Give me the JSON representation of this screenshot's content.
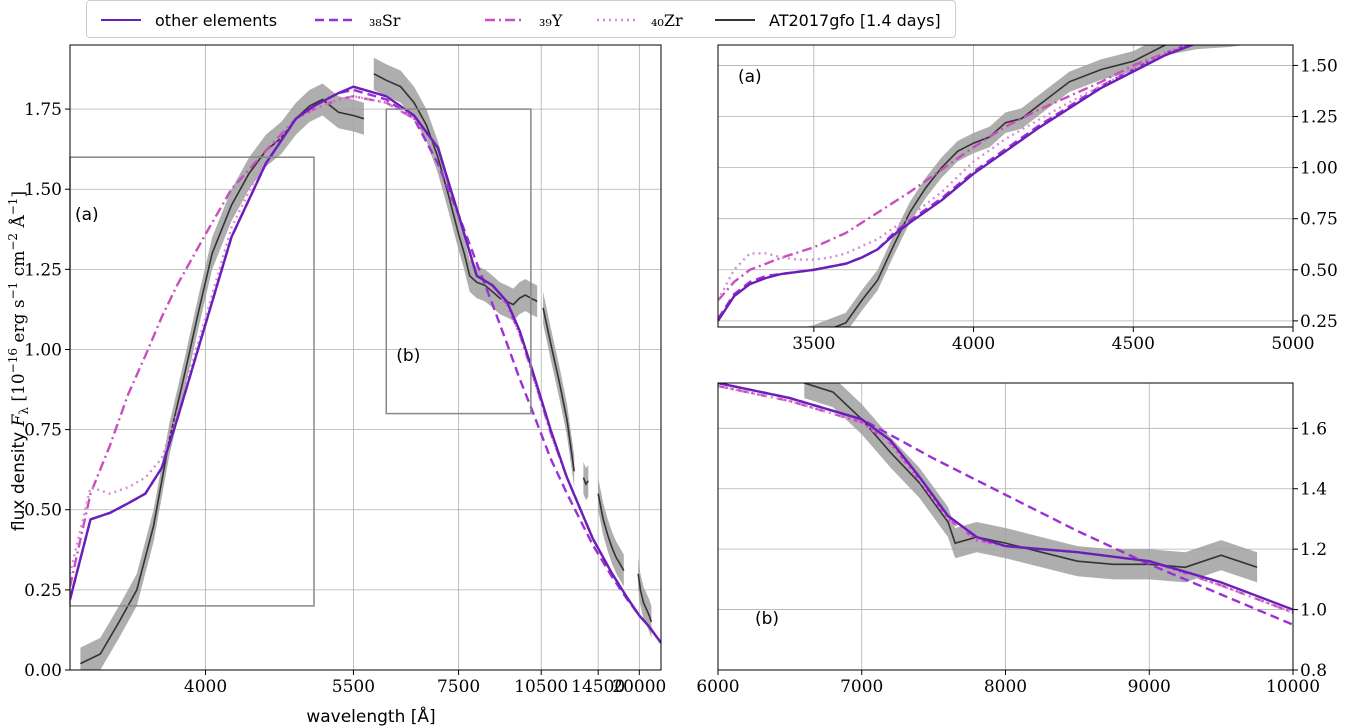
{
  "legend": {
    "other": "other elements",
    "sr": "₃₈Sr",
    "y": "₃₉Y",
    "zr": "₄₀Zr",
    "obs": "AT2017gfo [1.4 days]"
  },
  "colors": {
    "other": "#6a1fb8",
    "sr": "#9b30d6",
    "y": "#c94ec0",
    "zr": "#d88bd6",
    "obs": "#333333",
    "obs_band": "#a0a0a0",
    "grid": "#b0b0b0",
    "box": "#888888"
  },
  "chart_data": [
    {
      "id": "main",
      "type": "line",
      "xlabel": "wavelength [Å]",
      "ylabel": "flux density F_λ [10⁻¹⁶ erg s⁻¹ cm⁻² Å⁻¹]",
      "ylabel_parts": {
        "pre": "flux density ",
        "mid": " [10",
        "exp1": "−16",
        "mid2": " erg s",
        "exp2": "−1",
        "mid3": " cm",
        "exp3": "−2",
        "mid4": " Å",
        "exp4": "−1",
        "post": "]",
        "F": "F",
        "lambda": "λ"
      },
      "x_scale": "reciprocal",
      "xlim": [
        3200,
        25000
      ],
      "ylim": [
        0.0,
        1.95
      ],
      "xticks": [
        4000,
        5500,
        7500,
        10500,
        14500,
        20000
      ],
      "yticks": [
        0.0,
        0.25,
        0.5,
        0.75,
        1.0,
        1.25,
        1.5,
        1.75
      ],
      "xtick_labels": [
        "4000",
        "5500",
        "7500",
        "10500",
        "14500",
        "20000"
      ],
      "ytick_labels": [
        "0.00",
        "0.25",
        "0.50",
        "0.75",
        "1.00",
        "1.25",
        "1.50",
        "1.75"
      ],
      "grid": true,
      "zoom_boxes": [
        {
          "label": "(a)",
          "x0": 3200,
          "x1": 5000,
          "y0": 0.2,
          "y1": 1.6
        },
        {
          "label": "(b)",
          "x0": 6000,
          "x1": 10000,
          "y0": 0.8,
          "y1": 1.75
        }
      ],
      "series": [
        {
          "key": "sr",
          "dash": "9,5",
          "x": [
            3200,
            3300,
            3400,
            3500,
            3600,
            3700,
            3800,
            4000,
            4200,
            4500,
            4800,
            5000,
            5300,
            5500,
            6000,
            6500,
            7000,
            7500,
            8000,
            8500,
            9000,
            9500,
            10000,
            11000,
            12000,
            14000,
            16000,
            18000,
            20000,
            22000,
            25000
          ],
          "y": [
            0.22,
            0.47,
            0.49,
            0.52,
            0.55,
            0.63,
            0.78,
            1.08,
            1.35,
            1.58,
            1.72,
            1.76,
            1.8,
            1.81,
            1.78,
            1.72,
            1.58,
            1.42,
            1.27,
            1.14,
            1.02,
            0.91,
            0.82,
            0.66,
            0.55,
            0.39,
            0.29,
            0.22,
            0.17,
            0.135,
            0.085
          ]
        },
        {
          "key": "y",
          "dash": "10,4,2,4",
          "x": [
            3200,
            3300,
            3400,
            3500,
            3600,
            3700,
            3800,
            4000,
            4200,
            4500,
            4800,
            5000,
            5300,
            5500,
            6000,
            6500,
            7000,
            7500,
            8000,
            8500,
            9000,
            9500,
            10000,
            11000,
            12000,
            14000,
            16000,
            18000,
            20000,
            22000,
            25000
          ],
          "y": [
            0.26,
            0.55,
            0.7,
            0.86,
            0.98,
            1.1,
            1.2,
            1.36,
            1.5,
            1.62,
            1.72,
            1.75,
            1.78,
            1.79,
            1.77,
            1.72,
            1.63,
            1.42,
            1.23,
            1.2,
            1.14,
            1.05,
            0.94,
            0.74,
            0.6,
            0.41,
            0.3,
            0.225,
            0.17,
            0.135,
            0.085
          ]
        },
        {
          "key": "zr",
          "dash": "2,4",
          "x": [
            3200,
            3300,
            3400,
            3500,
            3600,
            3700,
            3800,
            4000,
            4200,
            4500,
            4800,
            5000,
            5300,
            5500,
            6000,
            6500,
            7000,
            7500,
            8000,
            8500,
            9000,
            9500,
            10000,
            11000,
            12000,
            14000,
            16000,
            18000,
            20000,
            22000,
            25000
          ],
          "y": [
            0.3,
            0.57,
            0.55,
            0.57,
            0.6,
            0.66,
            0.8,
            1.1,
            1.38,
            1.6,
            1.72,
            1.75,
            1.78,
            1.79,
            1.77,
            1.72,
            1.63,
            1.42,
            1.23,
            1.2,
            1.14,
            1.05,
            0.94,
            0.74,
            0.6,
            0.41,
            0.3,
            0.225,
            0.17,
            0.135,
            0.085
          ]
        },
        {
          "key": "other",
          "dash": "",
          "x": [
            3200,
            3300,
            3400,
            3500,
            3600,
            3700,
            3800,
            4000,
            4200,
            4500,
            4800,
            5000,
            5300,
            5500,
            6000,
            6500,
            7000,
            7500,
            8000,
            8500,
            9000,
            9500,
            10000,
            11000,
            12000,
            14000,
            16000,
            18000,
            20000,
            22000,
            25000
          ],
          "y": [
            0.22,
            0.47,
            0.49,
            0.52,
            0.55,
            0.63,
            0.78,
            1.08,
            1.35,
            1.58,
            1.72,
            1.76,
            1.8,
            1.82,
            1.79,
            1.73,
            1.63,
            1.42,
            1.23,
            1.2,
            1.15,
            1.06,
            0.95,
            0.75,
            0.6,
            0.41,
            0.3,
            0.225,
            0.17,
            0.135,
            0.085
          ]
        }
      ],
      "observed": {
        "key": "obs",
        "segments": [
          {
            "x": [
              3250,
              3350,
              3450,
              3550,
              3650,
              3750,
              3850,
              3950,
              4050,
              4200,
              4350,
              4500,
              4650,
              4800,
              4950,
              5100,
              5300,
              5500,
              5650
            ],
            "y": [
              0.02,
              0.05,
              0.15,
              0.25,
              0.45,
              0.72,
              0.92,
              1.12,
              1.3,
              1.45,
              1.55,
              1.62,
              1.66,
              1.72,
              1.76,
              1.78,
              1.74,
              1.73,
              1.72
            ]
          },
          {
            "x": [
              5800,
              6000,
              6250,
              6500,
              6750,
              7000,
              7250,
              7500,
              7650,
              7800,
              8000,
              8250,
              8500,
              8750,
              9000,
              9250,
              9500,
              9750,
              10000,
              10300
            ],
            "y": [
              1.86,
              1.84,
              1.82,
              1.77,
              1.7,
              1.6,
              1.48,
              1.36,
              1.3,
              1.23,
              1.21,
              1.2,
              1.18,
              1.16,
              1.15,
              1.14,
              1.16,
              1.17,
              1.16,
              1.15
            ]
          },
          {
            "x": [
              10600,
              11000,
              11500,
              12000,
              12500
            ],
            "y": [
              1.13,
              1.02,
              0.9,
              0.78,
              0.62
            ]
          },
          {
            "x": [
              13200,
              13400,
              13600
            ],
            "y": [
              0.6,
              0.58,
              0.59
            ]
          },
          {
            "x": [
              14500,
              15000,
              15500,
              16000,
              16500,
              17000,
              17500
            ],
            "y": [
              0.55,
              0.47,
              0.42,
              0.38,
              0.35,
              0.33,
              0.31
            ]
          },
          {
            "x": [
              19800,
              20200,
              20800,
              21400,
              22000,
              22500
            ],
            "y": [
              0.3,
              0.25,
              0.21,
              0.19,
              0.17,
              0.15
            ]
          }
        ]
      }
    },
    {
      "id": "zoom_a",
      "type": "line",
      "panel_label": "(a)",
      "xlim": [
        3200,
        5000
      ],
      "ylim": [
        0.22,
        1.6
      ],
      "xticks": [
        3500,
        4000,
        4500,
        5000
      ],
      "xtick_labels": [
        "3500",
        "4000",
        "4500",
        "5000"
      ],
      "yticks": [
        0.25,
        0.5,
        0.75,
        1.0,
        1.25,
        1.5
      ],
      "ytick_labels": [
        "0.25",
        "0.50",
        "0.75",
        "1.00",
        "1.25",
        "1.50"
      ],
      "grid": true,
      "series": [
        {
          "key": "sr",
          "dash": "9,5",
          "x": [
            3200,
            3250,
            3300,
            3350,
            3400,
            3500,
            3600,
            3650,
            3700,
            3750,
            3800,
            3900,
            4000,
            4100,
            4200,
            4300,
            4400,
            4500,
            4600,
            4700,
            4800,
            4900,
            5000
          ],
          "y": [
            0.26,
            0.38,
            0.44,
            0.47,
            0.48,
            0.5,
            0.53,
            0.56,
            0.6,
            0.68,
            0.74,
            0.85,
            0.98,
            1.09,
            1.2,
            1.3,
            1.4,
            1.48,
            1.56,
            1.62,
            1.66,
            1.7,
            1.73
          ]
        },
        {
          "key": "y",
          "dash": "10,4,2,4",
          "x": [
            3200,
            3250,
            3300,
            3350,
            3400,
            3500,
            3600,
            3700,
            3800,
            3900,
            4000,
            4100,
            4200,
            4300,
            4400,
            4500,
            4600,
            4700,
            4800,
            4900,
            5000
          ],
          "y": [
            0.35,
            0.44,
            0.5,
            0.53,
            0.56,
            0.61,
            0.68,
            0.78,
            0.88,
            0.99,
            1.1,
            1.2,
            1.28,
            1.35,
            1.42,
            1.5,
            1.56,
            1.61,
            1.66,
            1.7,
            1.73
          ]
        },
        {
          "key": "zr",
          "dash": "2,4",
          "x": [
            3200,
            3250,
            3300,
            3350,
            3400,
            3450,
            3500,
            3550,
            3600,
            3700,
            3800,
            3900,
            4000,
            4100,
            4200,
            4300,
            4400,
            4500,
            4600,
            4700,
            4800,
            4900,
            5000
          ],
          "y": [
            0.35,
            0.5,
            0.58,
            0.58,
            0.56,
            0.55,
            0.55,
            0.56,
            0.58,
            0.65,
            0.76,
            0.88,
            1.03,
            1.14,
            1.23,
            1.32,
            1.4,
            1.48,
            1.56,
            1.62,
            1.66,
            1.7,
            1.73
          ]
        },
        {
          "key": "other",
          "dash": "",
          "x": [
            3200,
            3250,
            3300,
            3350,
            3400,
            3500,
            3600,
            3650,
            3700,
            3750,
            3800,
            3900,
            4000,
            4100,
            4200,
            4300,
            4400,
            4500,
            4600,
            4700,
            4800,
            4900,
            5000
          ],
          "y": [
            0.25,
            0.37,
            0.43,
            0.46,
            0.48,
            0.5,
            0.53,
            0.56,
            0.6,
            0.67,
            0.73,
            0.84,
            0.97,
            1.08,
            1.19,
            1.29,
            1.39,
            1.47,
            1.55,
            1.61,
            1.66,
            1.7,
            1.73
          ]
        }
      ],
      "observed": {
        "key": "obs",
        "segments": [
          {
            "x": [
              3300,
              3400,
              3500,
              3600,
              3650,
              3700,
              3750,
              3800,
              3850,
              3900,
              3950,
              4000,
              4050,
              4100,
              4150,
              4200,
              4300,
              4400,
              4500,
              4600,
              4700,
              4800,
              4900
            ],
            "y": [
              0.15,
              0.14,
              0.18,
              0.24,
              0.35,
              0.45,
              0.62,
              0.78,
              0.9,
              1.0,
              1.08,
              1.12,
              1.15,
              1.22,
              1.24,
              1.3,
              1.42,
              1.48,
              1.52,
              1.6,
              1.63,
              1.64,
              1.66
            ]
          }
        ]
      }
    },
    {
      "id": "zoom_b",
      "type": "line",
      "panel_label": "(b)",
      "xlim": [
        6000,
        10000
      ],
      "ylim": [
        0.8,
        1.75
      ],
      "xticks": [
        6000,
        7000,
        8000,
        9000,
        10000
      ],
      "xtick_labels": [
        "6000",
        "7000",
        "8000",
        "9000",
        "10000"
      ],
      "yticks": [
        0.8,
        1.0,
        1.2,
        1.4,
        1.6
      ],
      "ytick_labels": [
        "0.8",
        "1.0",
        "1.2",
        "1.4",
        "1.6"
      ],
      "grid": true,
      "series": [
        {
          "key": "sr",
          "dash": "9,5",
          "x": [
            6000,
            6500,
            7000,
            7500,
            8000,
            8500,
            9000,
            9500,
            10000
          ],
          "y": [
            1.75,
            1.7,
            1.63,
            1.5,
            1.38,
            1.26,
            1.15,
            1.05,
            0.95
          ]
        },
        {
          "key": "y",
          "dash": "10,4,2,4",
          "x": [
            6000,
            6500,
            7000,
            7200,
            7400,
            7600,
            7800,
            8000,
            8500,
            9000,
            9500,
            10000
          ],
          "y": [
            1.74,
            1.69,
            1.62,
            1.55,
            1.43,
            1.3,
            1.23,
            1.21,
            1.19,
            1.16,
            1.08,
            0.99
          ]
        },
        {
          "key": "zr",
          "dash": "2,4",
          "x": [
            6000,
            6500,
            7000,
            7200,
            7400,
            7600,
            7800,
            8000,
            8500,
            9000,
            9500,
            10000
          ],
          "y": [
            1.74,
            1.69,
            1.62,
            1.55,
            1.43,
            1.3,
            1.23,
            1.21,
            1.19,
            1.16,
            1.08,
            0.99
          ]
        },
        {
          "key": "other",
          "dash": "",
          "x": [
            6000,
            6500,
            7000,
            7200,
            7400,
            7600,
            7800,
            8000,
            8500,
            9000,
            9500,
            10000
          ],
          "y": [
            1.75,
            1.7,
            1.63,
            1.56,
            1.44,
            1.31,
            1.24,
            1.21,
            1.19,
            1.16,
            1.09,
            1.0
          ]
        }
      ],
      "observed": {
        "key": "obs",
        "segments": [
          {
            "x": [
              6600,
              6800,
              7000,
              7200,
              7400,
              7600,
              7650,
              7800,
              8000,
              8250,
              8500,
              8750,
              9000,
              9250,
              9500,
              9750
            ],
            "y": [
              1.75,
              1.72,
              1.63,
              1.52,
              1.42,
              1.29,
              1.22,
              1.24,
              1.22,
              1.19,
              1.16,
              1.15,
              1.15,
              1.14,
              1.18,
              1.14
            ]
          }
        ]
      }
    }
  ]
}
